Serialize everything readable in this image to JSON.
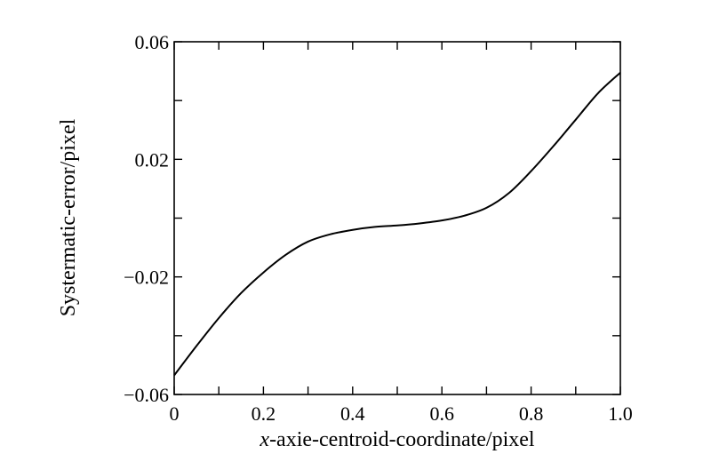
{
  "chart_data": {
    "type": "line",
    "title": "",
    "xlabel_italic": "x",
    "xlabel_rest": "-axie-centroid-coordinate/pixel",
    "ylabel": "Systermatic-error/pixel",
    "xlim": [
      0,
      1.0
    ],
    "ylim": [
      -0.06,
      0.06
    ],
    "x_ticks": [
      0,
      0.1,
      0.2,
      0.3,
      0.4,
      0.5,
      0.6,
      0.7,
      0.8,
      0.9,
      1.0
    ],
    "x_tick_labels": [
      {
        "value": 0,
        "label": "0"
      },
      {
        "value": 0.2,
        "label": "0.2"
      },
      {
        "value": 0.4,
        "label": "0.4"
      },
      {
        "value": 0.6,
        "label": "0.6"
      },
      {
        "value": 0.8,
        "label": "0.8"
      },
      {
        "value": 1.0,
        "label": "1.0"
      }
    ],
    "y_ticks": [
      -0.06,
      -0.04,
      -0.02,
      0,
      0.02,
      0.04,
      0.06
    ],
    "y_tick_labels": [
      {
        "value": 0.06,
        "label": "0.06"
      },
      {
        "value": 0.02,
        "label": "0.02"
      },
      {
        "value": -0.02,
        "label": "−0.02"
      },
      {
        "value": -0.06,
        "label": "−0.06"
      }
    ],
    "grid": false,
    "series": [
      {
        "x": [
          0,
          0.05,
          0.1,
          0.15,
          0.2,
          0.25,
          0.3,
          0.35,
          0.4,
          0.45,
          0.5,
          0.55,
          0.6,
          0.65,
          0.7,
          0.75,
          0.8,
          0.85,
          0.9,
          0.95,
          1.0
        ],
        "y": [
          -0.0535,
          -0.0435,
          -0.034,
          -0.0255,
          -0.0185,
          -0.0125,
          -0.008,
          -0.0055,
          -0.004,
          -0.003,
          -0.0025,
          -0.0018,
          -0.0008,
          0.0008,
          0.0035,
          0.0085,
          0.016,
          0.0245,
          0.0335,
          0.0425,
          0.0495
        ]
      }
    ]
  }
}
